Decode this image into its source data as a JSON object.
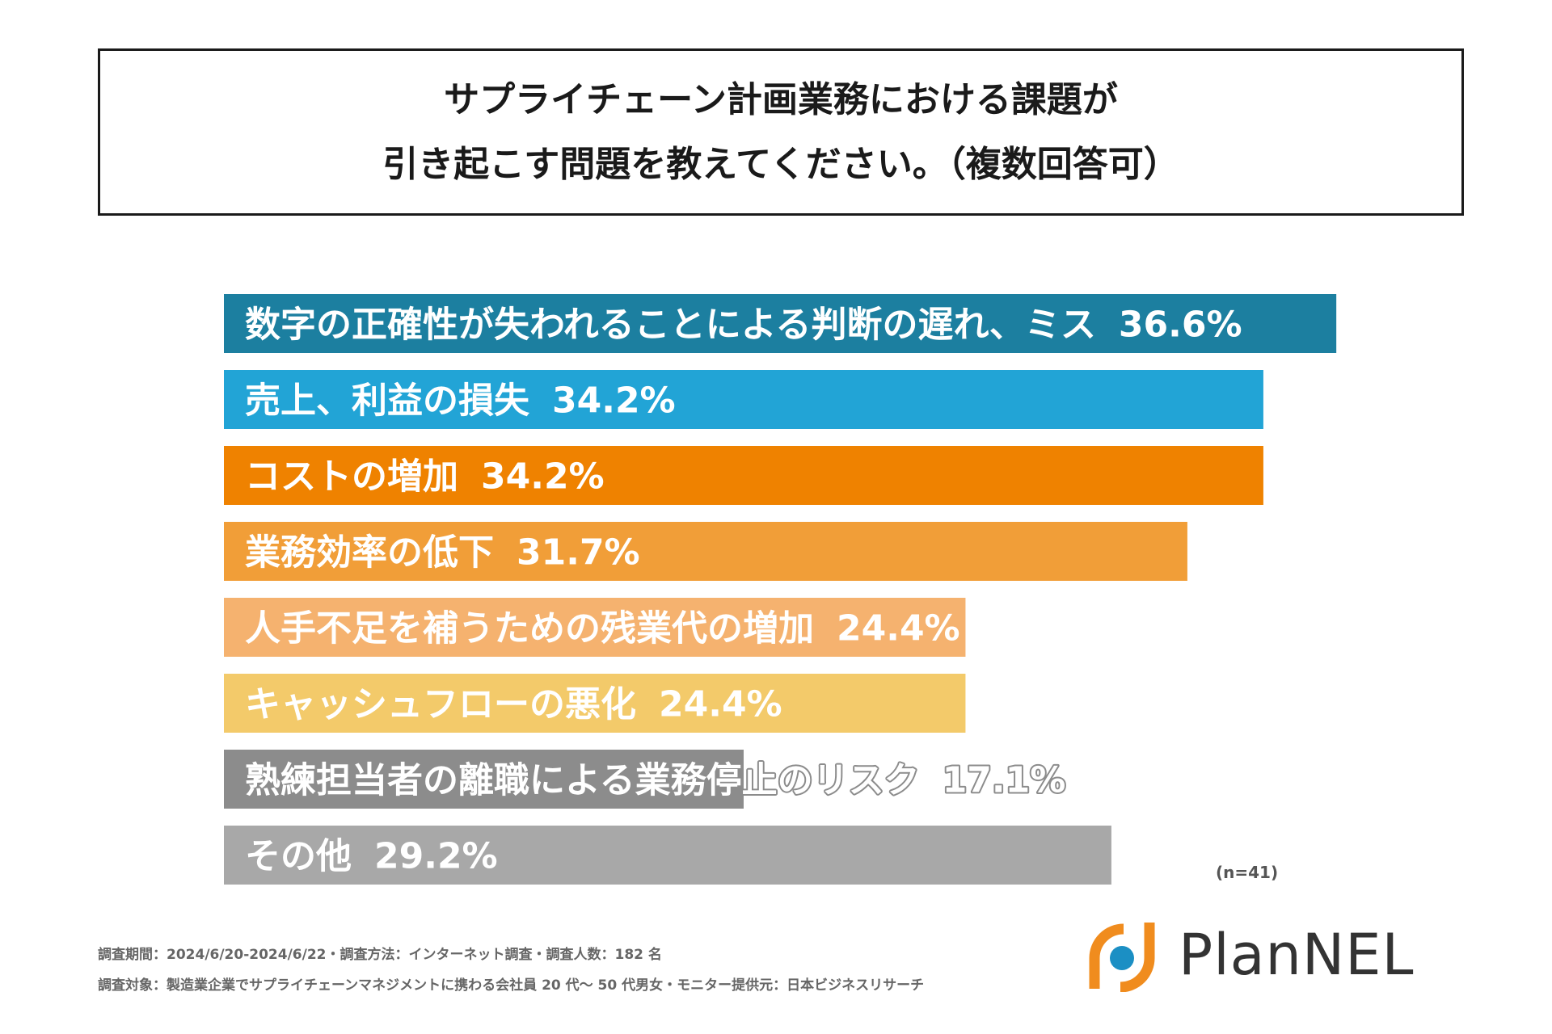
{
  "chart_data": {
    "type": "bar",
    "orientation": "horizontal",
    "title_lines": [
      "サプライチェーン計画業務における課題が",
      "引き起こす問題を教えてください。（複数回答可）"
    ],
    "categories": [
      "数字の正確性が失われることによる判断の遅れ、ミス",
      "売上、利益の損失",
      "コストの増加",
      "業務効率の低下",
      "人手不足を補うための残業代の増加",
      "キャッシュフローの悪化",
      "熟練担当者の離職による業務停止のリスク",
      "その他"
    ],
    "values": [
      36.6,
      34.2,
      34.2,
      31.7,
      24.4,
      24.4,
      17.1,
      29.2
    ],
    "value_labels": [
      "36.6%",
      "34.2%",
      "34.2%",
      "31.7%",
      "24.4%",
      "24.4%",
      "17.1%",
      "29.2%"
    ],
    "colors": [
      "#1c7fa0",
      "#22a4d6",
      "#ef8200",
      "#f19e38",
      "#f5b26f",
      "#f3ca6a",
      "#8c8c8c",
      "#a8a8a8"
    ],
    "unit": "%",
    "sample_note": "(n=41)"
  },
  "footnotes": [
    "調査期間：2024/6/20-2024/6/22・調査方法：インターネット調査・調査人数：182 名",
    "調査対象：製造業企業でサプライチェーンマネジメントに携わる会社員 20 代〜 50 代男女・モニター提供元：日本ビジネスリサーチ"
  ],
  "logo": {
    "text": "PlanNEL",
    "colors": {
      "orange": "#f08c1e",
      "blue": "#1b8fc4",
      "text": "#333333"
    }
  }
}
